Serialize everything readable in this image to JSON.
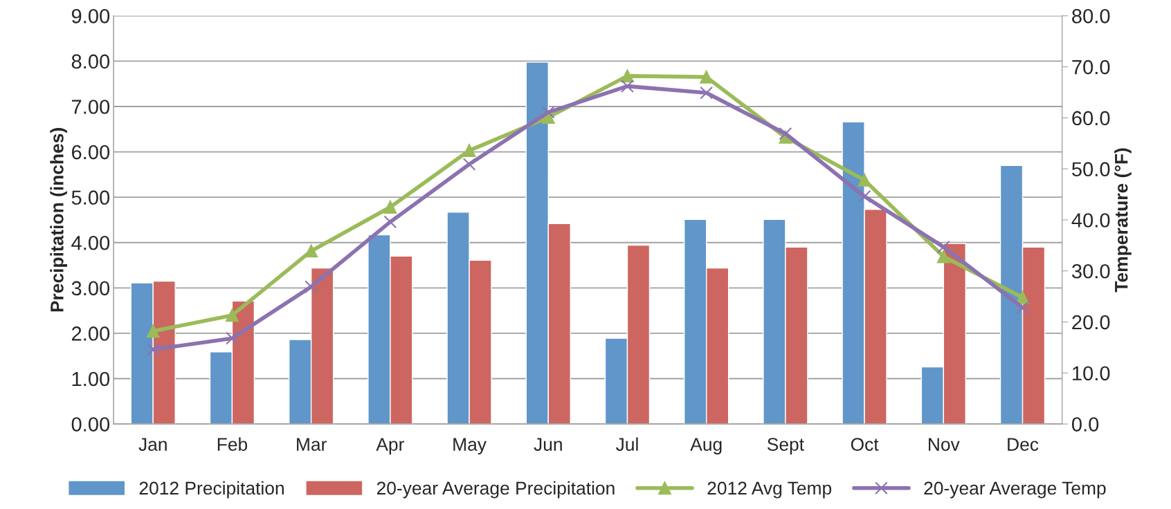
{
  "chart_data": {
    "type": "bar",
    "ylabel": "Precipitation (inches)",
    "y2label": "Temperature (°F)",
    "categories": [
      "Jan",
      "Feb",
      "Mar",
      "Apr",
      "May",
      "Jun",
      "Jul",
      "Aug",
      "Sept",
      "Oct",
      "Nov",
      "Dec"
    ],
    "series": [
      {
        "name": "2012 Precipitation",
        "color": "#6096c9",
        "values": [
          3.11,
          1.59,
          1.86,
          4.17,
          4.67,
          7.98,
          1.89,
          4.51,
          4.51,
          6.66,
          1.26,
          5.7
        ]
      },
      {
        "name": "20-year Average Precipitation",
        "color": "#cd6660",
        "values": [
          3.15,
          2.71,
          3.44,
          3.7,
          3.61,
          4.42,
          3.94,
          3.44,
          3.9,
          4.73,
          3.98,
          3.9
        ]
      },
      {
        "name": "2012 Avg Temp",
        "type": "line",
        "axis": "y2",
        "marker": "triangle",
        "color": "#9bbb59",
        "values": [
          18.2,
          21.3,
          33.9,
          42.5,
          53.6,
          60.1,
          68.2,
          68.0,
          56.2,
          47.8,
          32.8,
          24.8
        ]
      },
      {
        "name": "20-year Average Temp",
        "type": "line",
        "axis": "y2",
        "marker": "cross",
        "color": "#8c72b0",
        "values": [
          14.6,
          16.8,
          26.9,
          39.6,
          50.9,
          61.1,
          66.2,
          64.9,
          56.9,
          44.6,
          34.7,
          22.8
        ]
      }
    ],
    "ylim": [
      0,
      9
    ],
    "yticks": [
      {
        "value": 0,
        "label": "0.00"
      },
      {
        "value": 1,
        "label": "1.00"
      },
      {
        "value": 2,
        "label": "2.00"
      },
      {
        "value": 3,
        "label": "3.00"
      },
      {
        "value": 4,
        "label": "4.00"
      },
      {
        "value": 5,
        "label": "5.00"
      },
      {
        "value": 6,
        "label": "6.00"
      },
      {
        "value": 7,
        "label": "7.00"
      },
      {
        "value": 8,
        "label": "8.00"
      },
      {
        "value": 9,
        "label": "9.00"
      }
    ],
    "y2lim": [
      0,
      80
    ],
    "y2ticks": [
      {
        "value": 0,
        "label": "0.0"
      },
      {
        "value": 10,
        "label": "10.0"
      },
      {
        "value": 20,
        "label": "20.0"
      },
      {
        "value": 30,
        "label": "30.0"
      },
      {
        "value": 40,
        "label": "40.0"
      },
      {
        "value": 50,
        "label": "50.0"
      },
      {
        "value": 60,
        "label": "60.0"
      },
      {
        "value": 70,
        "label": "70.0"
      },
      {
        "value": 80,
        "label": "80.0"
      }
    ],
    "grid": "y",
    "legend": "bottom"
  }
}
